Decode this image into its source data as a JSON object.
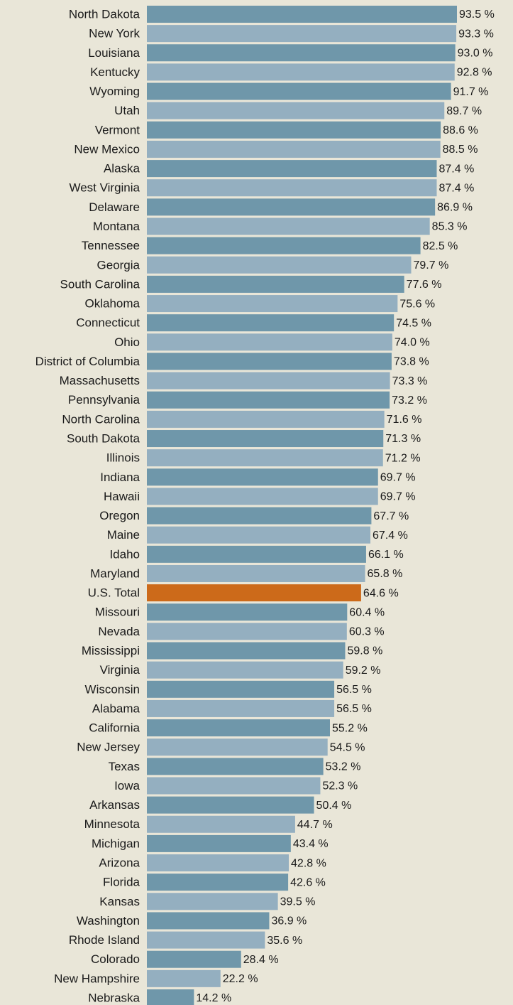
{
  "chart_data": {
    "type": "bar",
    "orientation": "horizontal",
    "categories": [
      "North Dakota",
      "New York",
      "Louisiana",
      "Kentucky",
      "Wyoming",
      "Utah",
      "Vermont",
      "New Mexico",
      "Alaska",
      "West Virginia",
      "Delaware",
      "Montana",
      "Tennessee",
      "Georgia",
      "South Carolina",
      "Oklahoma",
      "Connecticut",
      "Ohio",
      "District of Columbia",
      "Massachusetts",
      "Pennsylvania",
      "North Carolina",
      "South Dakota",
      "Illinois",
      "Indiana",
      "Hawaii",
      "Oregon",
      "Maine",
      "Idaho",
      "Maryland",
      "U.S. Total",
      "Missouri",
      "Nevada",
      "Mississippi",
      "Virginia",
      "Wisconsin",
      "Alabama",
      "California",
      "New Jersey",
      "Texas",
      "Iowa",
      "Arkansas",
      "Minnesota",
      "Michigan",
      "Arizona",
      "Florida",
      "Kansas",
      "Washington",
      "Rhode Island",
      "Colorado",
      "New Hampshire",
      "Nebraska"
    ],
    "values": [
      93.5,
      93.3,
      93.0,
      92.8,
      91.7,
      89.7,
      88.6,
      88.5,
      87.4,
      87.4,
      86.9,
      85.3,
      82.5,
      79.7,
      77.6,
      75.6,
      74.5,
      74.0,
      73.8,
      73.3,
      73.2,
      71.6,
      71.3,
      71.2,
      69.7,
      69.7,
      67.7,
      67.4,
      66.1,
      65.8,
      64.6,
      60.4,
      60.3,
      59.8,
      59.2,
      56.5,
      56.5,
      55.2,
      54.5,
      53.2,
      52.3,
      50.4,
      44.7,
      43.4,
      42.8,
      42.6,
      39.5,
      36.9,
      35.6,
      28.4,
      22.2,
      14.2
    ],
    "value_labels": [
      "93.5 %",
      "93.3 %",
      "93.0 %",
      "92.8 %",
      "91.7 %",
      "89.7 %",
      "88.6 %",
      "88.5 %",
      "87.4 %",
      "87.4 %",
      "86.9 %",
      "85.3 %",
      "82.5 %",
      "79.7 %",
      "77.6 %",
      "75.6 %",
      "74.5 %",
      "74.0 %",
      "73.8 %",
      "73.3 %",
      "73.2 %",
      "71.6 %",
      "71.3 %",
      "71.2 %",
      "69.7 %",
      "69.7 %",
      "67.7 %",
      "67.4 %",
      "66.1 %",
      "65.8 %",
      "64.6 %",
      "60.4 %",
      "60.3 %",
      "59.8 %",
      "59.2 %",
      "56.5 %",
      "56.5 %",
      "55.2 %",
      "54.5 %",
      "53.2 %",
      "52.3 %",
      "50.4 %",
      "44.7 %",
      "43.4 %",
      "42.8 %",
      "42.6 %",
      "39.5 %",
      "36.9 %",
      "35.6 %",
      "28.4 %",
      "22.2 %",
      "14.2 %"
    ],
    "colors": [
      "#6f97aa",
      "#94afc0",
      "#6f97aa",
      "#94afc0",
      "#6f97aa",
      "#94afc0",
      "#6f97aa",
      "#94afc0",
      "#6f97aa",
      "#94afc0",
      "#6f97aa",
      "#94afc0",
      "#6f97aa",
      "#94afc0",
      "#6f97aa",
      "#94afc0",
      "#6f97aa",
      "#94afc0",
      "#6f97aa",
      "#94afc0",
      "#6f97aa",
      "#94afc0",
      "#6f97aa",
      "#94afc0",
      "#6f97aa",
      "#94afc0",
      "#6f97aa",
      "#94afc0",
      "#6f97aa",
      "#94afc0",
      "#cc6a1a",
      "#6f97aa",
      "#94afc0",
      "#6f97aa",
      "#94afc0",
      "#6f97aa",
      "#94afc0",
      "#6f97aa",
      "#94afc0",
      "#6f97aa",
      "#94afc0",
      "#6f97aa",
      "#94afc0",
      "#6f97aa",
      "#94afc0",
      "#6f97aa",
      "#94afc0",
      "#6f97aa",
      "#94afc0",
      "#6f97aa",
      "#94afc0",
      "#6f97aa"
    ]
  }
}
